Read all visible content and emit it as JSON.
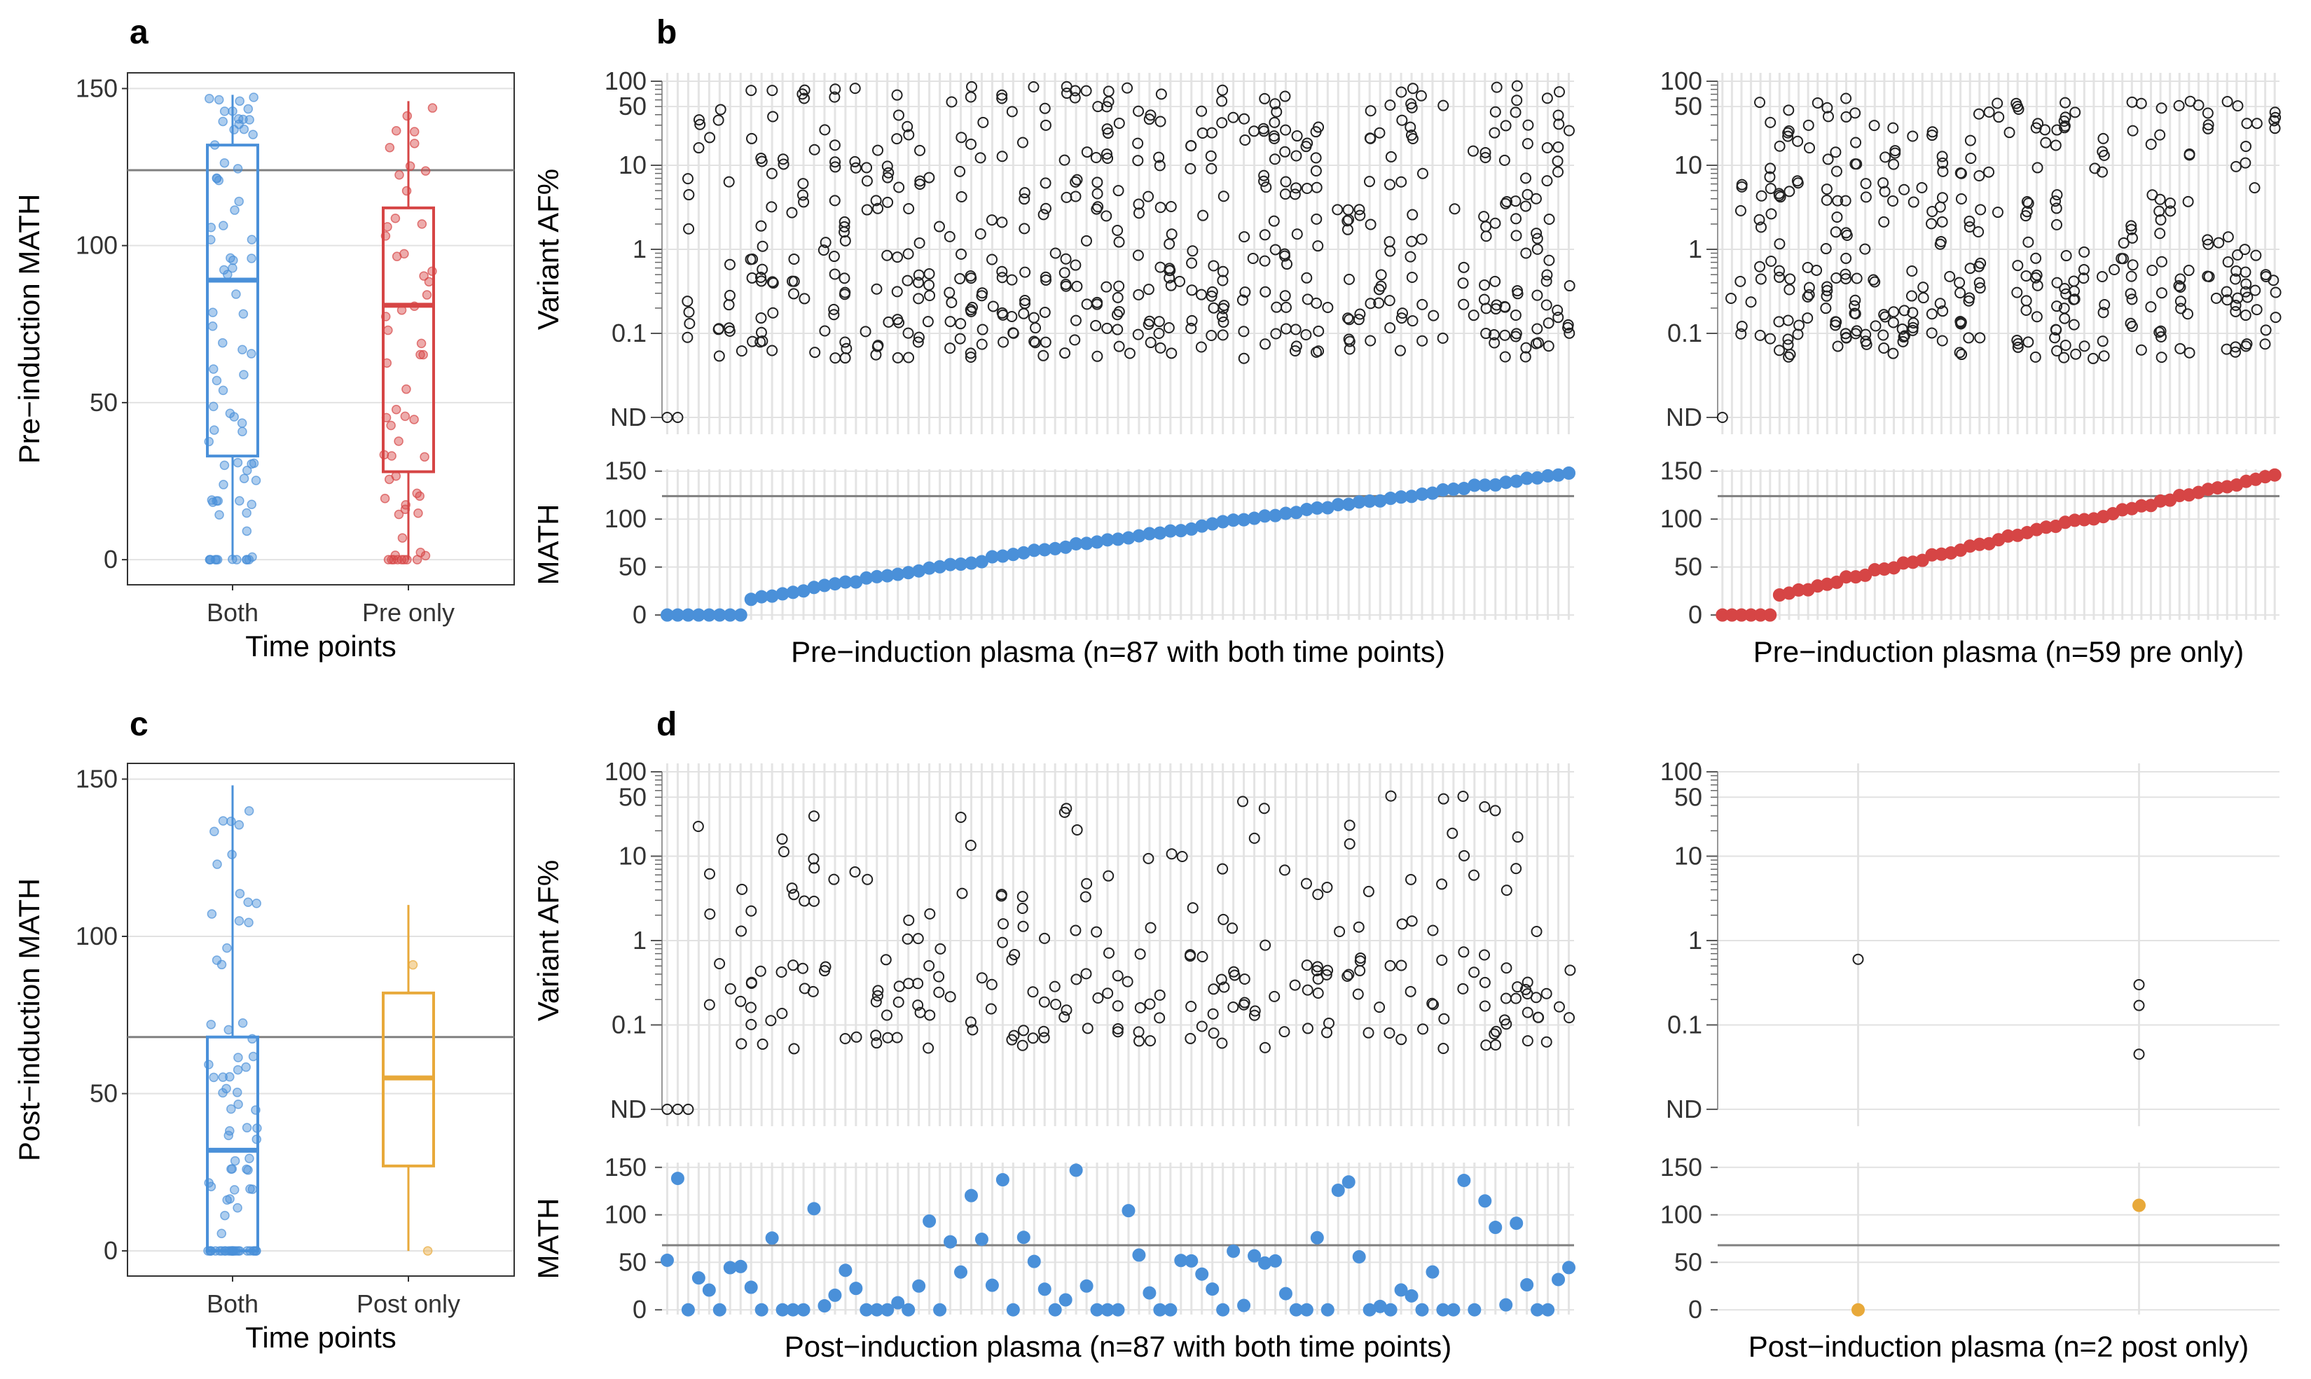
{
  "panel_labels": {
    "a": "a",
    "b": "b",
    "c": "c",
    "d": "d"
  },
  "colors": {
    "both": "#4a90d9",
    "pre_only": "#d64545",
    "post_only": "#e8a93a",
    "af_points": "#222222",
    "threshold": "#808080"
  },
  "chart_data": [
    {
      "id": "a",
      "type": "box",
      "ylabel": "Pre−induction MATH",
      "xlabel": "Time points",
      "categories": [
        "Both",
        "Pre only"
      ],
      "yticks": [
        "0",
        "50",
        "100",
        "150"
      ],
      "ylim": [
        -8,
        155
      ],
      "threshold": 124,
      "boxes": [
        {
          "name": "Both",
          "q1": 33,
          "median": 89,
          "q3": 132,
          "min": 0,
          "max": 148,
          "n": 87
        },
        {
          "name": "Pre only",
          "q1": 28,
          "median": 81,
          "q3": 112,
          "min": 0,
          "max": 146,
          "n": 59
        }
      ]
    },
    {
      "id": "b-both",
      "type": "strip",
      "ylabel": "Variant AF%",
      "xlabel": "",
      "yticks": [
        "ND",
        "0.1",
        "1",
        "10",
        "50",
        "100"
      ],
      "ylim_log10": [
        -2.2,
        2.1
      ],
      "n_samples": 87
    },
    {
      "id": "b-pre",
      "type": "strip",
      "ylabel": "",
      "xlabel": "",
      "yticks": [
        "ND",
        "0.1",
        "1",
        "10",
        "50",
        "100"
      ],
      "ylim_log10": [
        -2.2,
        2.1
      ],
      "n_samples": 59
    },
    {
      "id": "b-both-math",
      "type": "scatter",
      "ylabel": "MATH",
      "xlabel": "Pre−induction plasma (n=87 with both time points)",
      "yticks": [
        "0",
        "50",
        "100",
        "150"
      ],
      "ylim": [
        -5,
        152
      ],
      "threshold": 124,
      "sorted": true,
      "n": 87
    },
    {
      "id": "b-pre-math",
      "type": "scatter",
      "ylabel": "",
      "xlabel": "Pre−induction plasma (n=59 pre only)",
      "yticks": [
        "0",
        "50",
        "100",
        "150"
      ],
      "ylim": [
        -5,
        152
      ],
      "threshold": 124,
      "sorted": true,
      "n": 59
    },
    {
      "id": "c",
      "type": "box",
      "ylabel": "Post−induction MATH",
      "xlabel": "Time points",
      "categories": [
        "Both",
        "Post only"
      ],
      "yticks": [
        "0",
        "50",
        "100",
        "150"
      ],
      "ylim": [
        -8,
        155
      ],
      "threshold": 68,
      "boxes": [
        {
          "name": "Both",
          "q1": 0,
          "median": 32,
          "q3": 68,
          "min": 0,
          "max": 148,
          "n": 87
        },
        {
          "name": "Post only",
          "q1": 27,
          "median": 55,
          "q3": 82,
          "min": 0,
          "max": 110,
          "n": 2
        }
      ]
    },
    {
      "id": "d-both",
      "type": "strip",
      "ylabel": "Variant AF%",
      "xlabel": "",
      "yticks": [
        "ND",
        "0.1",
        "1",
        "10",
        "50",
        "100"
      ],
      "ylim_log10": [
        -2.2,
        2.1
      ],
      "n_samples": 87
    },
    {
      "id": "d-post",
      "type": "strip",
      "ylabel": "",
      "xlabel": "",
      "yticks": [
        "ND",
        "0.1",
        "1",
        "10",
        "50",
        "100"
      ],
      "ylim_log10": [
        -2.2,
        2.1
      ],
      "n_samples": 2,
      "points": [
        {
          "sample": 1,
          "af": 0.6
        },
        {
          "sample": 2,
          "af": 0.3
        },
        {
          "sample": 2,
          "af": 0.17
        },
        {
          "sample": 2,
          "af": 0.045
        }
      ]
    },
    {
      "id": "d-both-math",
      "type": "scatter",
      "ylabel": "MATH",
      "xlabel": "Post−induction plasma (n=87 with both time points)",
      "yticks": [
        "0",
        "50",
        "100",
        "150"
      ],
      "ylim": [
        -5,
        155
      ],
      "threshold": 68,
      "n": 87
    },
    {
      "id": "d-post-math",
      "type": "scatter",
      "ylabel": "",
      "xlabel": "Post−induction plasma (n=2 post only)",
      "yticks": [
        "0",
        "50",
        "100",
        "150"
      ],
      "ylim": [
        -5,
        155
      ],
      "threshold": 68,
      "n": 2,
      "values": [
        0,
        110
      ]
    }
  ]
}
